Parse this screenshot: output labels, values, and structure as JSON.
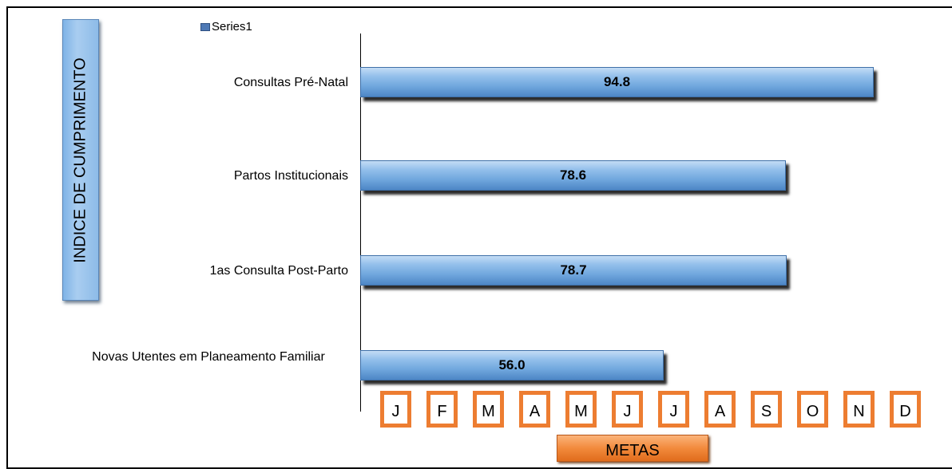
{
  "chart_data": {
    "type": "bar",
    "orientation": "horizontal",
    "ylabel": "INDICE DE CUMPRIMENTO",
    "xlabel": "METAS",
    "legend": {
      "position": "top-left",
      "entries": [
        "Series1"
      ]
    },
    "categories": [
      "Consultas Pré-Natal",
      "Partos Institucionais",
      "1as Consulta Post-Parto",
      "Novas Utentes em Planeamento Familiar"
    ],
    "series": [
      {
        "name": "Series1",
        "values": [
          94.8,
          78.6,
          78.7,
          56.0
        ],
        "labels": [
          "94.8",
          "78.6",
          "78.7",
          "56.0"
        ]
      }
    ],
    "xlim": [
      0,
      100
    ],
    "grid": false,
    "colors": {
      "bar": "#6fa6dd",
      "month_border": "#ed7d31",
      "title_box": "#8dbbe8",
      "metas_box": "#f28a3c"
    },
    "months": [
      "J",
      "F",
      "M",
      "A",
      "M",
      "J",
      "J",
      "A",
      "S",
      "O",
      "N",
      "D"
    ]
  }
}
